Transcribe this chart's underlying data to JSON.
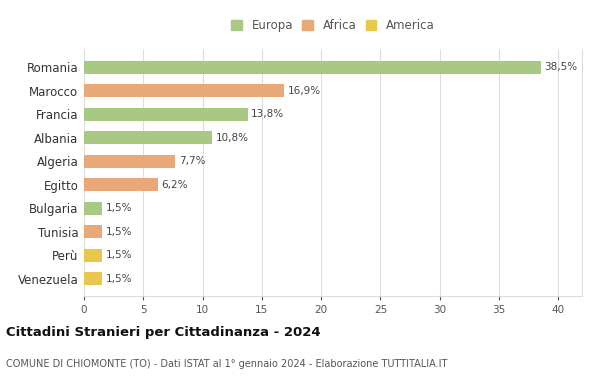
{
  "categories": [
    "Romania",
    "Marocco",
    "Francia",
    "Albania",
    "Algeria",
    "Egitto",
    "Bulgaria",
    "Tunisia",
    "Perù",
    "Venezuela"
  ],
  "values": [
    38.5,
    16.9,
    13.8,
    10.8,
    7.7,
    6.2,
    1.5,
    1.5,
    1.5,
    1.5
  ],
  "labels": [
    "38,5%",
    "16,9%",
    "13,8%",
    "10,8%",
    "7,7%",
    "6,2%",
    "1,5%",
    "1,5%",
    "1,5%",
    "1,5%"
  ],
  "colors": [
    "#a8c884",
    "#e8a878",
    "#a8c884",
    "#a8c884",
    "#e8a878",
    "#e8a878",
    "#a8c884",
    "#e8a878",
    "#e8c84c",
    "#e8c84c"
  ],
  "legend": [
    {
      "label": "Europa",
      "color": "#a8c884"
    },
    {
      "label": "Africa",
      "color": "#e8a878"
    },
    {
      "label": "America",
      "color": "#e8c84c"
    }
  ],
  "title": "Cittadini Stranieri per Cittadinanza - 2024",
  "subtitle": "COMUNE DI CHIOMONTE (TO) - Dati ISTAT al 1° gennaio 2024 - Elaborazione TUTTITALIA.IT",
  "xlim": [
    0,
    42
  ],
  "xticks": [
    0,
    5,
    10,
    15,
    20,
    25,
    30,
    35,
    40
  ],
  "background_color": "#ffffff",
  "grid_color": "#dddddd"
}
